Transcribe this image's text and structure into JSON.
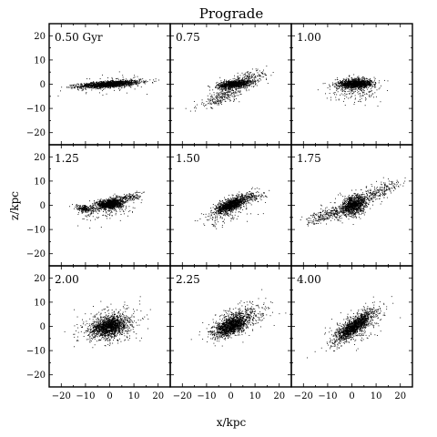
{
  "chart_data": {
    "type": "scatter",
    "title": "Prograde",
    "xlabel": "x/kpc",
    "ylabel": "z/kpc",
    "xlim": [
      -25,
      25
    ],
    "ylim": [
      -25,
      25
    ],
    "xticks": [
      -20,
      -10,
      0,
      10,
      20
    ],
    "yticks": [
      -20,
      -10,
      0,
      10,
      20
    ],
    "xtick_labels": [
      "−20",
      "−10",
      "0",
      "10",
      "20"
    ],
    "ytick_labels": [
      "−20",
      "−10",
      "0",
      "10",
      "20"
    ],
    "grid": false,
    "layout": "3x3",
    "point_color": "#000000",
    "panels": [
      {
        "label": "0.50 Gyr",
        "time_gyr": 0.5,
        "components": [
          {
            "cx": 0,
            "cz": 0,
            "a": 14,
            "b": 1.4,
            "angle_deg": 4,
            "n": 1400
          },
          {
            "cx": 0,
            "cz": 0,
            "a": 16,
            "b": 4,
            "angle_deg": 4,
            "n": 120
          }
        ]
      },
      {
        "label": "0.75",
        "time_gyr": 0.75,
        "components": [
          {
            "cx": 1.5,
            "cz": 0,
            "a": 7.5,
            "b": 1.8,
            "angle_deg": 6,
            "n": 1000
          },
          {
            "cx": -3,
            "cz": -5,
            "a": 13,
            "b": 3.2,
            "angle_deg": 22,
            "n": 280
          },
          {
            "cx": 8,
            "cz": 3,
            "a": 9,
            "b": 2.5,
            "angle_deg": 10,
            "n": 140
          }
        ]
      },
      {
        "label": "1.00",
        "time_gyr": 1.0,
        "components": [
          {
            "cx": 1.5,
            "cz": 0,
            "a": 7,
            "b": 1.6,
            "angle_deg": 2,
            "n": 900
          },
          {
            "cx": 1.5,
            "cz": 0.5,
            "a": 9,
            "b": 2.5,
            "angle_deg": 2,
            "n": 420
          },
          {
            "cx": 2,
            "cz": -3,
            "a": 12,
            "b": 4.5,
            "angle_deg": 0,
            "n": 160
          }
        ]
      },
      {
        "label": "1.25",
        "time_gyr": 1.25,
        "components": [
          {
            "cx": 0,
            "cz": 0.5,
            "a": 5.5,
            "b": 2.2,
            "angle_deg": 6,
            "n": 1100
          },
          {
            "cx": -10,
            "cz": -1.5,
            "a": 5,
            "b": 1.6,
            "angle_deg": -10,
            "n": 220
          },
          {
            "cx": 7,
            "cz": 3,
            "a": 7,
            "b": 2,
            "angle_deg": 8,
            "n": 180
          },
          {
            "cx": 0,
            "cz": -2,
            "a": 14,
            "b": 5,
            "angle_deg": 10,
            "n": 120
          }
        ]
      },
      {
        "label": "1.50",
        "time_gyr": 1.5,
        "components": [
          {
            "cx": 0,
            "cz": 0,
            "a": 6.5,
            "b": 2.3,
            "angle_deg": 22,
            "n": 1000
          },
          {
            "cx": 6,
            "cz": 3,
            "a": 9,
            "b": 2.5,
            "angle_deg": 12,
            "n": 260
          },
          {
            "cx": -2,
            "cz": -3,
            "a": 13,
            "b": 5,
            "angle_deg": 20,
            "n": 160
          }
        ]
      },
      {
        "label": "1.75",
        "time_gyr": 1.75,
        "components": [
          {
            "cx": 1,
            "cz": 0,
            "a": 6,
            "b": 4,
            "angle_deg": 25,
            "n": 1000
          },
          {
            "cx": -10,
            "cz": -4,
            "a": 10,
            "b": 2.5,
            "angle_deg": 15,
            "n": 260
          },
          {
            "cx": 12,
            "cz": 6,
            "a": 9,
            "b": 3,
            "angle_deg": 25,
            "n": 200
          },
          {
            "cx": 0,
            "cz": 0,
            "a": 16,
            "b": 6,
            "angle_deg": 20,
            "n": 140
          }
        ]
      },
      {
        "label": "2.00",
        "time_gyr": 2.0,
        "components": [
          {
            "cx": 0,
            "cz": 0,
            "a": 8,
            "b": 4.2,
            "angle_deg": 15,
            "n": 1300
          },
          {
            "cx": 0,
            "cz": 0,
            "a": 14,
            "b": 8,
            "angle_deg": 15,
            "n": 400
          }
        ]
      },
      {
        "label": "2.25",
        "time_gyr": 2.25,
        "components": [
          {
            "cx": 0,
            "cz": 0,
            "a": 8,
            "b": 3.6,
            "angle_deg": 25,
            "n": 1300
          },
          {
            "cx": 4,
            "cz": 3,
            "a": 13,
            "b": 6,
            "angle_deg": 20,
            "n": 420
          }
        ]
      },
      {
        "label": "4.00",
        "time_gyr": 4.0,
        "components": [
          {
            "cx": 1,
            "cz": 0,
            "a": 10,
            "b": 2.8,
            "angle_deg": 38,
            "n": 1300
          },
          {
            "cx": 2,
            "cz": 0,
            "a": 15,
            "b": 6,
            "angle_deg": 35,
            "n": 380
          }
        ]
      }
    ]
  }
}
